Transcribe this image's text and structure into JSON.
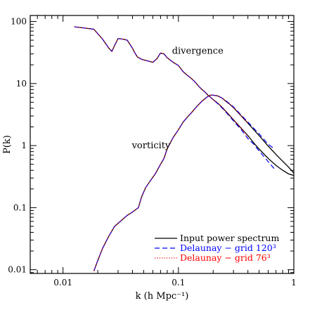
{
  "chart_data": {
    "type": "line",
    "xlabel": "k (h Mpc⁻¹)",
    "ylabel": "P(k)",
    "xscale": "log",
    "yscale": "log",
    "xlim": [
      0.0052,
      1.0
    ],
    "ylim": [
      0.0087,
      125
    ],
    "grid": false,
    "legend_position": "bottom-right",
    "xticks": [
      {
        "v": 0.01,
        "label": "0.01"
      },
      {
        "v": 0.1,
        "label": "0.1"
      },
      {
        "v": 1,
        "label": "1"
      }
    ],
    "yticks": [
      {
        "v": 0.01,
        "label": "0.01"
      },
      {
        "v": 0.1,
        "label": "0.1"
      },
      {
        "v": 1,
        "label": "1"
      },
      {
        "v": 10,
        "label": "10"
      },
      {
        "v": 100,
        "label": "100"
      }
    ],
    "annotations": [
      {
        "text": "divergence",
        "x": 0.088,
        "y": 30
      },
      {
        "text": "vorticity",
        "x": 0.0395,
        "y": 0.9
      }
    ],
    "series": [
      {
        "name": "Input power spectrum",
        "curve": "divergence",
        "color": "#000000",
        "dash": "solid",
        "points": [
          [
            0.0125,
            82
          ],
          [
            0.015,
            79
          ],
          [
            0.0185,
            75
          ],
          [
            0.022,
            52
          ],
          [
            0.025,
            37
          ],
          [
            0.0265,
            33
          ],
          [
            0.0285,
            44
          ],
          [
            0.03,
            53
          ],
          [
            0.033,
            52
          ],
          [
            0.036,
            50
          ],
          [
            0.04,
            37
          ],
          [
            0.042,
            31
          ],
          [
            0.044,
            27
          ],
          [
            0.047,
            25
          ],
          [
            0.05,
            24
          ],
          [
            0.055,
            23
          ],
          [
            0.06,
            22
          ],
          [
            0.065,
            25
          ],
          [
            0.07,
            31
          ],
          [
            0.075,
            30
          ],
          [
            0.08,
            26
          ],
          [
            0.09,
            22
          ],
          [
            0.1,
            19.5
          ],
          [
            0.11,
            15.5
          ],
          [
            0.12,
            13.5
          ],
          [
            0.13,
            12.0
          ],
          [
            0.14,
            10.5
          ],
          [
            0.15,
            9.0
          ],
          [
            0.16,
            8.0
          ],
          [
            0.17,
            7.3
          ],
          [
            0.18,
            6.5
          ],
          [
            0.19,
            6.0
          ],
          [
            0.2,
            5.5
          ],
          [
            0.22,
            4.8
          ],
          [
            0.24,
            4.1
          ],
          [
            0.26,
            3.5
          ],
          [
            0.28,
            3.0
          ],
          [
            0.3,
            2.6
          ],
          [
            0.35,
            1.9
          ],
          [
            0.4,
            1.45
          ],
          [
            0.45,
            1.1
          ],
          [
            0.5,
            0.88
          ],
          [
            0.6,
            0.62
          ],
          [
            0.7,
            0.48
          ],
          [
            0.8,
            0.4
          ],
          [
            0.9,
            0.35
          ],
          [
            1.0,
            0.33
          ]
        ]
      },
      {
        "name": "Input power spectrum",
        "curve": "vorticity",
        "color": "#000000",
        "dash": "solid",
        "points": [
          [
            0.0185,
            0.0095
          ],
          [
            0.02,
            0.014
          ],
          [
            0.022,
            0.022
          ],
          [
            0.025,
            0.035
          ],
          [
            0.028,
            0.05
          ],
          [
            0.032,
            0.062
          ],
          [
            0.036,
            0.075
          ],
          [
            0.04,
            0.085
          ],
          [
            0.045,
            0.1
          ],
          [
            0.048,
            0.15
          ],
          [
            0.052,
            0.21
          ],
          [
            0.057,
            0.27
          ],
          [
            0.063,
            0.35
          ],
          [
            0.07,
            0.5
          ],
          [
            0.075,
            0.62
          ],
          [
            0.08,
            0.9
          ],
          [
            0.085,
            1.1
          ],
          [
            0.09,
            1.35
          ],
          [
            0.1,
            1.8
          ],
          [
            0.11,
            2.4
          ],
          [
            0.12,
            2.9
          ],
          [
            0.13,
            3.4
          ],
          [
            0.14,
            4.0
          ],
          [
            0.15,
            4.6
          ],
          [
            0.16,
            5.2
          ],
          [
            0.17,
            5.7
          ],
          [
            0.18,
            6.2
          ],
          [
            0.19,
            6.5
          ],
          [
            0.2,
            6.5
          ],
          [
            0.22,
            6.3
          ],
          [
            0.24,
            5.8
          ],
          [
            0.26,
            5.1
          ],
          [
            0.28,
            4.6
          ],
          [
            0.3,
            4.1
          ],
          [
            0.35,
            3.0
          ],
          [
            0.4,
            2.3
          ],
          [
            0.45,
            1.8
          ],
          [
            0.5,
            1.45
          ],
          [
            0.6,
            0.98
          ],
          [
            0.7,
            0.72
          ],
          [
            0.8,
            0.56
          ],
          [
            0.9,
            0.45
          ],
          [
            1.0,
            0.36
          ]
        ]
      },
      {
        "name": "Delaunay − grid 120³",
        "curve": "divergence",
        "color": "#0000ff",
        "dash": "dashed",
        "points": [
          [
            0.0125,
            82
          ],
          [
            0.015,
            79
          ],
          [
            0.0185,
            75
          ],
          [
            0.022,
            52
          ],
          [
            0.025,
            37
          ],
          [
            0.0265,
            33
          ],
          [
            0.0285,
            44
          ],
          [
            0.03,
            53
          ],
          [
            0.033,
            52
          ],
          [
            0.036,
            50
          ],
          [
            0.04,
            37
          ],
          [
            0.042,
            31
          ],
          [
            0.044,
            27
          ],
          [
            0.047,
            25
          ],
          [
            0.05,
            24
          ],
          [
            0.055,
            23
          ],
          [
            0.06,
            22
          ],
          [
            0.065,
            25
          ],
          [
            0.07,
            31
          ],
          [
            0.075,
            30
          ],
          [
            0.08,
            26
          ],
          [
            0.09,
            22
          ],
          [
            0.1,
            19.5
          ],
          [
            0.11,
            15.5
          ],
          [
            0.12,
            13.5
          ],
          [
            0.13,
            12.0
          ],
          [
            0.14,
            10.5
          ],
          [
            0.15,
            9.0
          ],
          [
            0.16,
            8.0
          ],
          [
            0.17,
            7.3
          ],
          [
            0.18,
            6.5
          ],
          [
            0.19,
            6.0
          ],
          [
            0.2,
            5.5
          ],
          [
            0.22,
            4.7
          ],
          [
            0.24,
            4.0
          ],
          [
            0.26,
            3.4
          ],
          [
            0.28,
            2.9
          ],
          [
            0.3,
            2.5
          ],
          [
            0.35,
            1.8
          ],
          [
            0.4,
            1.3
          ],
          [
            0.45,
            1.05
          ],
          [
            0.5,
            0.82
          ],
          [
            0.6,
            0.55
          ],
          [
            0.68,
            0.42
          ]
        ]
      },
      {
        "name": "Delaunay − grid 120³",
        "curve": "vorticity",
        "color": "#0000ff",
        "dash": "dashed",
        "points": [
          [
            0.0185,
            0.0095
          ],
          [
            0.02,
            0.014
          ],
          [
            0.022,
            0.022
          ],
          [
            0.025,
            0.035
          ],
          [
            0.028,
            0.05
          ],
          [
            0.032,
            0.062
          ],
          [
            0.036,
            0.075
          ],
          [
            0.04,
            0.085
          ],
          [
            0.045,
            0.1
          ],
          [
            0.048,
            0.15
          ],
          [
            0.052,
            0.21
          ],
          [
            0.057,
            0.27
          ],
          [
            0.063,
            0.35
          ],
          [
            0.07,
            0.5
          ],
          [
            0.075,
            0.62
          ],
          [
            0.08,
            0.9
          ],
          [
            0.085,
            1.1
          ],
          [
            0.09,
            1.35
          ],
          [
            0.1,
            1.8
          ],
          [
            0.11,
            2.4
          ],
          [
            0.12,
            2.9
          ],
          [
            0.13,
            3.4
          ],
          [
            0.14,
            4.0
          ],
          [
            0.15,
            4.6
          ],
          [
            0.16,
            5.2
          ],
          [
            0.17,
            5.7
          ],
          [
            0.18,
            6.2
          ],
          [
            0.19,
            6.5
          ],
          [
            0.2,
            6.5
          ],
          [
            0.22,
            6.3
          ],
          [
            0.24,
            5.8
          ],
          [
            0.26,
            5.2
          ],
          [
            0.28,
            4.7
          ],
          [
            0.3,
            4.2
          ],
          [
            0.35,
            3.1
          ],
          [
            0.4,
            2.4
          ],
          [
            0.45,
            1.9
          ],
          [
            0.5,
            1.55
          ],
          [
            0.6,
            1.05
          ],
          [
            0.68,
            0.88
          ]
        ]
      },
      {
        "name": "Delaunay − grid 76³",
        "curve": "divergence",
        "color": "#ff0000",
        "dash": "dotted",
        "points": [
          [
            0.0125,
            82
          ],
          [
            0.015,
            79
          ],
          [
            0.0185,
            75
          ],
          [
            0.022,
            52
          ],
          [
            0.025,
            37
          ],
          [
            0.0265,
            33
          ],
          [
            0.0285,
            44
          ],
          [
            0.03,
            53
          ],
          [
            0.033,
            52
          ],
          [
            0.036,
            50
          ],
          [
            0.04,
            37
          ],
          [
            0.042,
            31
          ],
          [
            0.044,
            27
          ],
          [
            0.047,
            25
          ],
          [
            0.05,
            24
          ],
          [
            0.055,
            23
          ],
          [
            0.06,
            22
          ],
          [
            0.065,
            25
          ],
          [
            0.07,
            31
          ],
          [
            0.075,
            30
          ],
          [
            0.08,
            26
          ],
          [
            0.09,
            22
          ],
          [
            0.1,
            19.5
          ],
          [
            0.11,
            15.5
          ],
          [
            0.12,
            13.5
          ],
          [
            0.13,
            12.0
          ],
          [
            0.14,
            10.5
          ],
          [
            0.15,
            9.0
          ],
          [
            0.16,
            8.0
          ],
          [
            0.17,
            7.3
          ],
          [
            0.18,
            6.5
          ],
          [
            0.19,
            6.0
          ],
          [
            0.2,
            5.5
          ],
          [
            0.22,
            4.8
          ],
          [
            0.24,
            4.1
          ],
          [
            0.26,
            3.5
          ],
          [
            0.28,
            3.0
          ],
          [
            0.3,
            2.6
          ],
          [
            0.35,
            1.9
          ],
          [
            0.4,
            1.4
          ]
        ]
      },
      {
        "name": "Delaunay − grid 76³",
        "curve": "vorticity",
        "color": "#ff0000",
        "dash": "dotted",
        "points": [
          [
            0.0185,
            0.0095
          ],
          [
            0.02,
            0.014
          ],
          [
            0.022,
            0.022
          ],
          [
            0.025,
            0.035
          ],
          [
            0.028,
            0.05
          ],
          [
            0.032,
            0.062
          ],
          [
            0.036,
            0.075
          ],
          [
            0.04,
            0.085
          ],
          [
            0.045,
            0.1
          ],
          [
            0.048,
            0.15
          ],
          [
            0.052,
            0.21
          ],
          [
            0.057,
            0.27
          ],
          [
            0.063,
            0.35
          ],
          [
            0.07,
            0.5
          ],
          [
            0.075,
            0.62
          ],
          [
            0.08,
            0.9
          ],
          [
            0.085,
            1.1
          ],
          [
            0.09,
            1.35
          ],
          [
            0.1,
            1.8
          ],
          [
            0.11,
            2.4
          ],
          [
            0.12,
            2.9
          ],
          [
            0.13,
            3.4
          ],
          [
            0.14,
            4.0
          ],
          [
            0.15,
            4.6
          ],
          [
            0.16,
            5.2
          ],
          [
            0.17,
            5.7
          ],
          [
            0.18,
            6.2
          ],
          [
            0.19,
            6.5
          ],
          [
            0.2,
            6.5
          ],
          [
            0.22,
            6.3
          ],
          [
            0.24,
            5.8
          ],
          [
            0.26,
            5.1
          ],
          [
            0.28,
            4.6
          ],
          [
            0.3,
            4.1
          ],
          [
            0.35,
            3.0
          ],
          [
            0.4,
            2.3
          ]
        ]
      }
    ],
    "legend": [
      {
        "label": "Input power spectrum",
        "color": "#000000",
        "dash": "solid"
      },
      {
        "label": "Delaunay − grid 120³",
        "color": "#0000ff",
        "dash": "dashed"
      },
      {
        "label": "Delaunay − grid 76³",
        "color": "#ff0000",
        "dash": "dotted"
      }
    ]
  }
}
